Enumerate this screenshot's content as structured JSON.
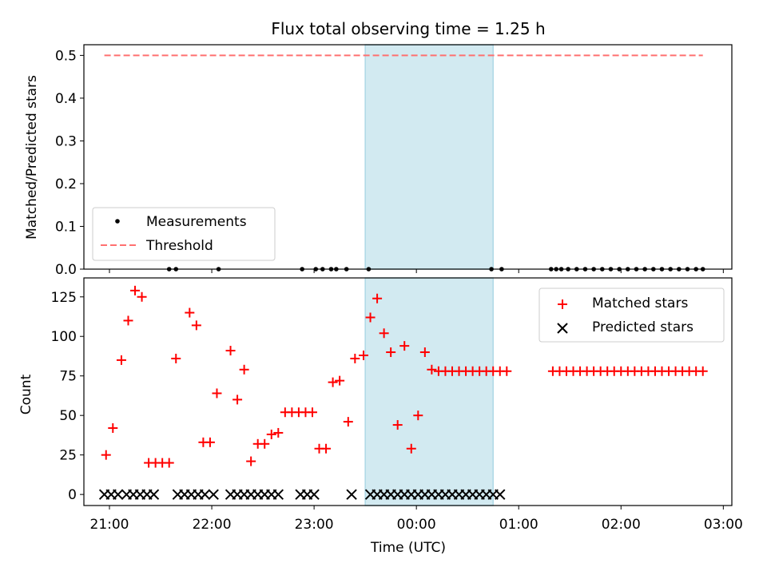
{
  "chart_data": [
    {
      "type": "scatter",
      "title": "Flux total observing time = 1.25 h",
      "xlabel": "",
      "ylabel": "Matched/Predicted stars",
      "xlim": [
        "20:45",
        "03:05"
      ],
      "ylim": [
        0,
        0.525
      ],
      "yticks": [
        "0.0",
        "0.1",
        "0.2",
        "0.3",
        "0.4",
        "0.5"
      ],
      "grid": false,
      "legend_position": "lower-left",
      "observing_window": {
        "start": "23:30",
        "end": "00:45",
        "color": "#add8e6"
      },
      "series": [
        {
          "name": "Measurements",
          "marker": "dot",
          "color": "#000000",
          "x": [
            "21:35",
            "21:39",
            "22:04",
            "22:53",
            "23:01",
            "23:05",
            "23:10",
            "23:13",
            "23:19",
            "23:32",
            "00:44",
            "00:50",
            "01:19",
            "01:22",
            "01:25",
            "01:29",
            "01:34",
            "01:39",
            "01:44",
            "01:49",
            "01:54",
            "01:59",
            "02:04",
            "02:09",
            "02:14",
            "02:19",
            "02:24",
            "02:29",
            "02:34",
            "02:39",
            "02:44",
            "02:48"
          ],
          "y": [
            0,
            0,
            0,
            0,
            0,
            0,
            0,
            0,
            0,
            0,
            0,
            0,
            0,
            0,
            0,
            0,
            0,
            0,
            0,
            0,
            0,
            0,
            0,
            0,
            0,
            0,
            0,
            0,
            0,
            0,
            0,
            0
          ]
        },
        {
          "name": "Threshold",
          "style": "dashed",
          "color": "#ff7070",
          "x": [
            "20:57",
            "02:48"
          ],
          "y": [
            0.5,
            0.5
          ]
        }
      ]
    },
    {
      "type": "scatter",
      "title": "",
      "xlabel": "Time (UTC)",
      "ylabel": "Count",
      "xlim": [
        "20:45",
        "03:05"
      ],
      "ylim": [
        -7,
        137
      ],
      "xticks": [
        "21:00",
        "22:00",
        "23:00",
        "00:00",
        "01:00",
        "02:00",
        "03:00"
      ],
      "yticks": [
        "0",
        "25",
        "50",
        "75",
        "100",
        "125"
      ],
      "grid": false,
      "legend_position": "upper-right",
      "observing_window": {
        "start": "23:30",
        "end": "00:45",
        "color": "#add8e6"
      },
      "series": [
        {
          "name": "Matched stars",
          "marker": "plus",
          "color": "#ff0000",
          "x": [
            "20:58",
            "21:02",
            "21:07",
            "21:11",
            "21:15",
            "21:19",
            "21:23",
            "21:27",
            "21:31",
            "21:35",
            "21:39",
            "21:47",
            "21:51",
            "21:55",
            "21:59",
            "22:03",
            "22:11",
            "22:15",
            "22:19",
            "22:23",
            "22:27",
            "22:31",
            "22:35",
            "22:39",
            "22:43",
            "22:47",
            "22:51",
            "22:55",
            "22:59",
            "23:03",
            "23:07",
            "23:11",
            "23:15",
            "23:20",
            "23:24",
            "23:29",
            "23:33",
            "23:37",
            "23:41",
            "23:45",
            "23:49",
            "23:53",
            "23:57",
            "00:01",
            "00:05",
            "00:09",
            "00:13",
            "00:17",
            "00:21",
            "00:25",
            "00:29",
            "00:33",
            "00:37",
            "00:41",
            "00:45",
            "00:49",
            "00:53",
            "01:20",
            "01:24",
            "01:28",
            "01:32",
            "01:36",
            "01:40",
            "01:44",
            "01:48",
            "01:52",
            "01:56",
            "02:00",
            "02:04",
            "02:08",
            "02:12",
            "02:16",
            "02:20",
            "02:24",
            "02:28",
            "02:32",
            "02:36",
            "02:40",
            "02:44",
            "02:48"
          ],
          "y": [
            25,
            42,
            85,
            110,
            129,
            125,
            20,
            20,
            20,
            20,
            86,
            115,
            107,
            33,
            33,
            64,
            91,
            60,
            79,
            21,
            32,
            32,
            38,
            39,
            52,
            52,
            52,
            52,
            52,
            29,
            29,
            71,
            72,
            46,
            86,
            88,
            112,
            124,
            102,
            90,
            44,
            94,
            29,
            50,
            90,
            79,
            78,
            78,
            78,
            78,
            78,
            78,
            78,
            78,
            78,
            78,
            78,
            78,
            78,
            78,
            78,
            78,
            78,
            78,
            78,
            78,
            78,
            78,
            78,
            78,
            78,
            78,
            78,
            78,
            78,
            78,
            78,
            78,
            78,
            78
          ]
        },
        {
          "name": "Predicted stars",
          "marker": "x",
          "color": "#000000",
          "x": [
            "20:57",
            "21:01",
            "21:05",
            "21:10",
            "21:14",
            "21:18",
            "21:22",
            "21:26",
            "21:40",
            "21:44",
            "21:48",
            "21:52",
            "21:56",
            "22:01",
            "22:11",
            "22:15",
            "22:19",
            "22:23",
            "22:27",
            "22:31",
            "22:35",
            "22:39",
            "22:52",
            "22:56",
            "23:00",
            "23:22",
            "23:33",
            "23:37",
            "23:41",
            "23:45",
            "23:49",
            "23:53",
            "23:57",
            "00:01",
            "00:05",
            "00:09",
            "00:13",
            "00:17",
            "00:21",
            "00:25",
            "00:29",
            "00:33",
            "00:37",
            "00:41",
            "00:45",
            "00:49"
          ],
          "y": [
            0,
            0,
            0,
            0,
            0,
            0,
            0,
            0,
            0,
            0,
            0,
            0,
            0,
            0,
            0,
            0,
            0,
            0,
            0,
            0,
            0,
            0,
            0,
            0,
            0,
            0,
            0,
            0,
            0,
            0,
            0,
            0,
            0,
            0,
            0,
            0,
            0,
            0,
            0,
            0,
            0,
            0,
            0,
            0,
            0,
            0
          ]
        }
      ]
    }
  ]
}
